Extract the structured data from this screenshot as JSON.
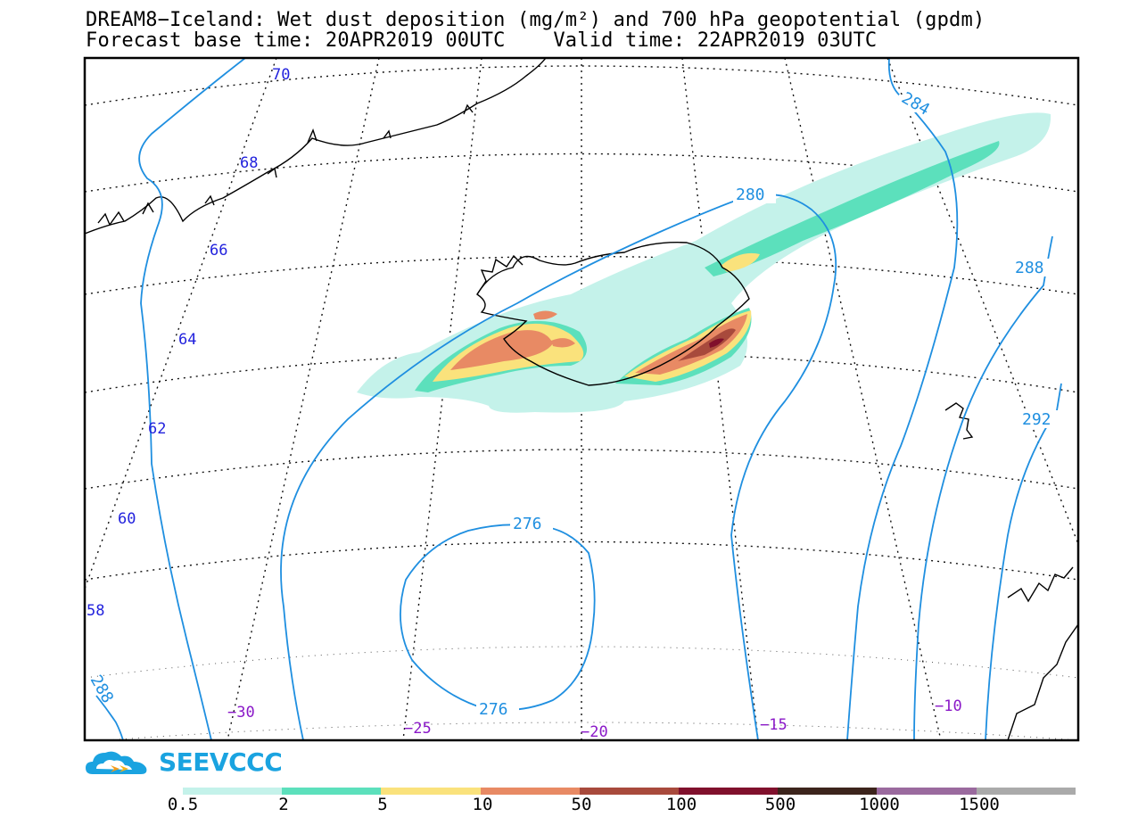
{
  "title": {
    "line1": "DREAM8−Iceland: Wet dust deposition (mg/m²) and 700 hPa geopotential (gpdm)",
    "line2": "Forecast base time: 20APR2019 00UTC    Valid time: 22APR2019 03UTC"
  },
  "map_labels": {
    "latitudes": [
      "70",
      "68",
      "66",
      "64",
      "62",
      "60",
      "58"
    ],
    "longitudes": [
      "−30",
      "−25",
      "−20",
      "−15",
      "−10"
    ],
    "contours": [
      "284",
      "280",
      "288",
      "292",
      "276",
      "276",
      "288"
    ]
  },
  "colors": {
    "contour": "#1f8fe0",
    "lat_label": "#2222dd",
    "lon_label": "#8a18c8"
  },
  "logo": {
    "text": "SEEVCCC",
    "icon": "cloud-arrow-logo"
  },
  "legend": {
    "colors": [
      "#c4f2ea",
      "#5ce0bc",
      "#fae27c",
      "#e88a64",
      "#a84a3c",
      "#80102c",
      "#3c241c",
      "#9a6a9e",
      "#aaaaaa"
    ],
    "labels": [
      "0.5",
      "2",
      "5",
      "10",
      "50",
      "100",
      "500",
      "1000",
      "1500"
    ]
  }
}
